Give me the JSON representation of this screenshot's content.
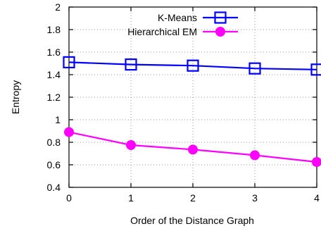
{
  "chart_data": {
    "type": "line",
    "xlabel": "Order of the Distance Graph",
    "ylabel": "Entropy",
    "xlim": [
      0,
      4
    ],
    "ylim": [
      0.4,
      2
    ],
    "xticks": [
      0,
      1,
      2,
      3,
      4
    ],
    "yticks": [
      0.4,
      0.6,
      0.8,
      1,
      1.2,
      1.4,
      1.6,
      1.8,
      2
    ],
    "xtick_labels": [
      "0",
      "1",
      "2",
      "3",
      "4"
    ],
    "ytick_labels": [
      "0.4",
      "0.6",
      "0.8",
      "1",
      "1.2",
      "1.4",
      "1.6",
      "1.8",
      "2"
    ],
    "grid": true,
    "legend_position": "top-right",
    "x": [
      0,
      1,
      2,
      3,
      4
    ],
    "series": [
      {
        "name": "K-Means",
        "values": [
          1.51,
          1.49,
          1.48,
          1.455,
          1.445
        ],
        "color": "#0000ff",
        "marker": "open-square"
      },
      {
        "name": "Hierarchical EM",
        "values": [
          0.89,
          0.775,
          0.735,
          0.685,
          0.625
        ],
        "color": "#ff00ff",
        "marker": "filled-circle"
      }
    ]
  }
}
